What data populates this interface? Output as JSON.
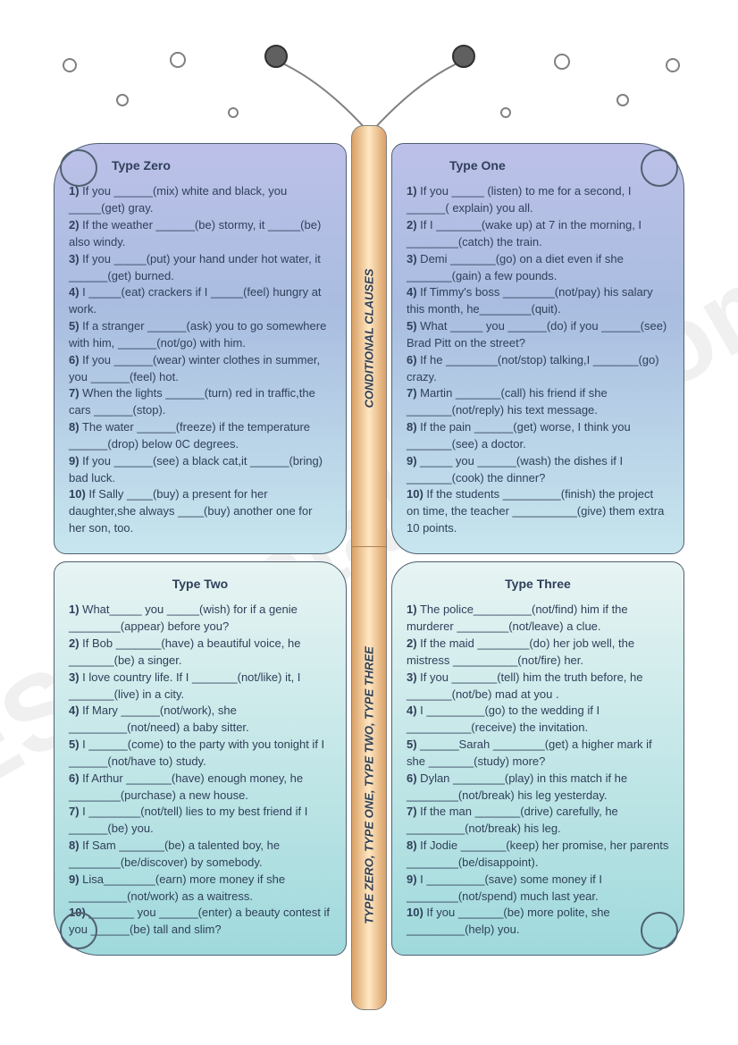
{
  "watermark": "ESLprintables.com",
  "pillar": {
    "top_label": "CONDITIONAL CLAUSES",
    "bottom_label": "TYPE ZERO, TYPE ONE, TYPE TWO, TYPE THREE"
  },
  "wings": {
    "type_zero": {
      "title": "Type Zero",
      "items": [
        "1) If you ______(mix) white and black, you _____(get) gray.",
        "2) If the weather ______(be) stormy, it _____(be) also windy.",
        "3) If you _____(put) your hand under hot water, it ______(get) burned.",
        "4) I _____(eat) crackers if I _____(feel) hungry at work.",
        "5) If a stranger ______(ask) you to go somewhere with him, ______(not/go) with him.",
        "6) If you ______(wear) winter clothes in summer, you ______(feel) hot.",
        "7) When the lights ______(turn) red in traffic,the cars ______(stop).",
        "8) The water ______(freeze) if the temperature ______(drop) below 0C degrees.",
        "9) If you ______(see) a black cat,it ______(bring) bad luck.",
        "10) If Sally ____(buy) a present for her daughter,she always ____(buy) another one for her son, too."
      ]
    },
    "type_one": {
      "title": "Type One",
      "items": [
        "1) If you _____ (listen) to me for a second, I ______( explain) you all.",
        "2) If I _______(wake up) at 7 in the morning, I ________(catch) the train.",
        "3) Demi _______(go) on a diet even if she _______(gain) a few pounds.",
        "4) If Timmy's boss ________(not/pay) his salary this month, he________(quit).",
        "5) What _____ you ______(do) if you ______(see) Brad Pitt on the street?",
        "6) If he ________(not/stop) talking,I _______(go) crazy.",
        "7) Martin _______(call) his friend if she _______(not/reply) his text message.",
        "8) If the pain ______(get) worse, I think you _______(see) a doctor.",
        "9) _____ you ______(wash) the dishes if I _______(cook) the dinner?",
        "10) If the students _________(finish) the project on time, the teacher __________(give) them extra 10 points."
      ]
    },
    "type_two": {
      "title": "Type Two",
      "items": [
        "1) What_____ you _____(wish) for if a genie ________(appear) before you?",
        "2) If Bob _______(have) a beautiful voice, he _______(be) a singer.",
        "3) I love country life. If I _______(not/like) it, I _______(live) in a city.",
        "4) If Mary ______(not/work), she _________(not/need) a baby sitter.",
        "5) I ______(come) to the party with you tonight if I ______(not/have to) study.",
        "6) If Arthur _______(have) enough money, he ________(purchase) a new house.",
        "7) I ________(not/tell) lies to my best friend if I ______(be) you.",
        "8) If Sam _______(be) a talented boy, he ________(be/discover) by somebody.",
        "9) Lisa________(earn) more money if she _________(not/work) as a waitress.",
        "10) _______ you ______(enter) a beauty contest if you ______(be) tall and slim?"
      ]
    },
    "type_three": {
      "title": "Type Three",
      "items": [
        "1) The police_________(not/find) him if the murderer ________(not/leave) a clue.",
        "2) If the maid ________(do) her job well, the mistress __________(not/fire) her.",
        "3) If you _______(tell) him the truth before, he _______(not/be) mad at you .",
        "4) I _________(go) to the wedding if I __________(receive) the invitation.",
        "5) ______Sarah ________(get) a higher mark if she _______(study) more?",
        "6) Dylan ________(play) in this match if he ________(not/break) his leg yesterday.",
        "7) If the man _______(drive) carefully, he _________(not/break) his leg.",
        "8) If Jodie _______(keep) her promise, her parents ________(be/disappoint).",
        "9) I _________(save) some money if I ________(not/spend) much last year.",
        "10) If you _______(be) more polite, she _________(help) you."
      ]
    }
  },
  "colors": {
    "text": "#30405a",
    "wing_top_grad": [
      "#bcc0e8",
      "#a9bde0",
      "#c7e6ee"
    ],
    "wing_bottom_grad": [
      "#e7f4f3",
      "#9fd9dc"
    ],
    "pillar_grad": [
      "#d9a066",
      "#ffe7c2",
      "#d9a066"
    ]
  }
}
